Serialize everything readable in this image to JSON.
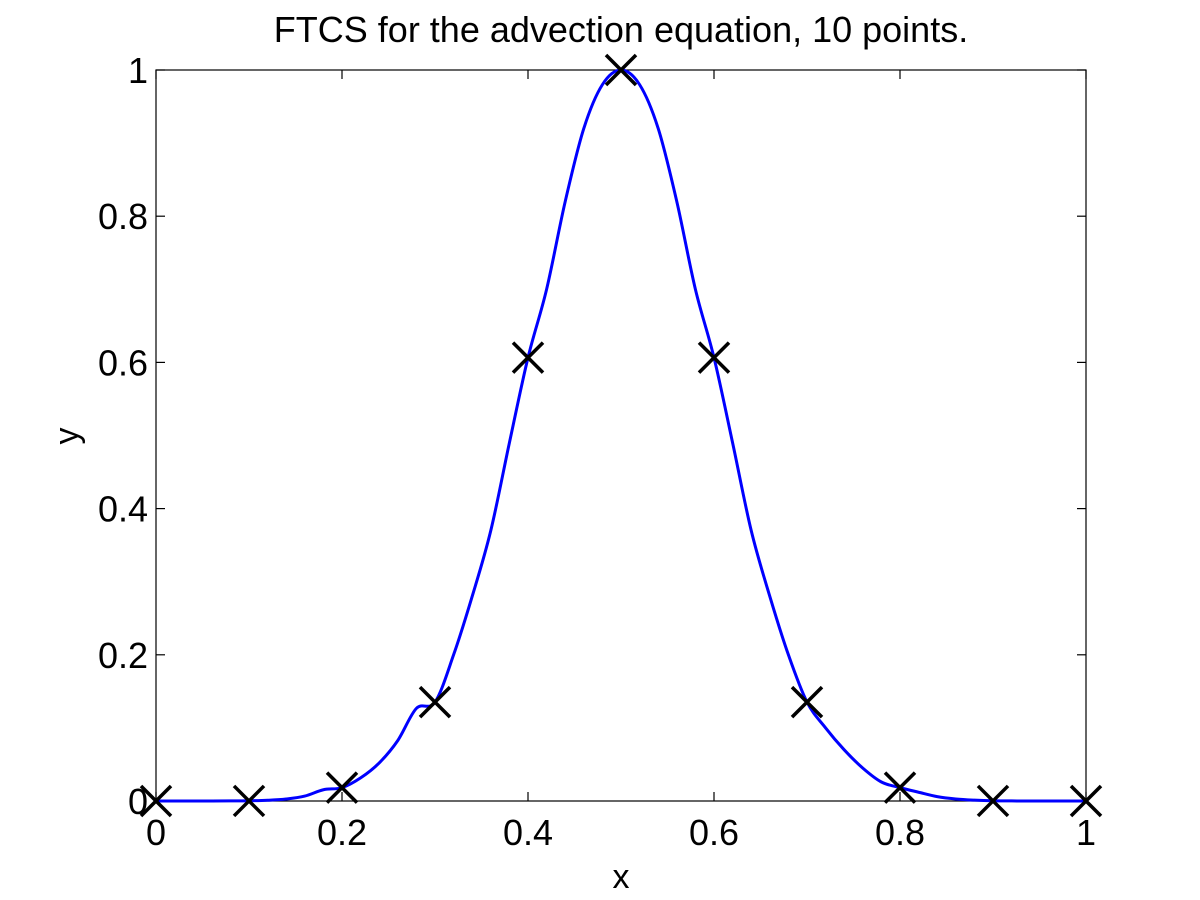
{
  "chart_data": {
    "type": "line",
    "title": "FTCS for the advection equation, 10 points.",
    "xlabel": "x",
    "ylabel": "y",
    "xlim": [
      0,
      1
    ],
    "ylim": [
      0,
      1
    ],
    "xticks": [
      0,
      0.2,
      0.4,
      0.6,
      0.8,
      1
    ],
    "xtick_labels": [
      "0",
      "0.2",
      "0.4",
      "0.6",
      "0.8",
      "1"
    ],
    "yticks": [
      0,
      0.2,
      0.4,
      0.6,
      0.8,
      1
    ],
    "ytick_labels": [
      "0",
      "0.2",
      "0.4",
      "0.6",
      "0.8",
      "1"
    ],
    "grid": false,
    "legend": "none",
    "series": [
      {
        "style": "line",
        "color": "#0000ff",
        "x": [
          0,
          0.02,
          0.04,
          0.06,
          0.08,
          0.1,
          0.12,
          0.14,
          0.16,
          0.18,
          0.2,
          0.22,
          0.24,
          0.26,
          0.28,
          0.3,
          0.32,
          0.34,
          0.36,
          0.38,
          0.4,
          0.42,
          0.44,
          0.46,
          0.48,
          0.5,
          0.52,
          0.54,
          0.56,
          0.58,
          0.6,
          0.62,
          0.64,
          0.66,
          0.68,
          0.7,
          0.72,
          0.74,
          0.76,
          0.78,
          0.8,
          0.82,
          0.84,
          0.86,
          0.88,
          0.9,
          0.92,
          0.94,
          0.96,
          0.98,
          1
        ],
        "y": [
          0.0,
          0.0,
          0.0,
          0.0,
          0.0001,
          0.0003,
          0.001,
          0.0027,
          0.0067,
          0.0154,
          0.0183,
          0.0316,
          0.0521,
          0.0828,
          0.1267,
          0.1353,
          0.2,
          0.28,
          0.37,
          0.49,
          0.6065,
          0.7,
          0.82,
          0.92,
          0.98,
          1.0,
          0.98,
          0.92,
          0.82,
          0.7,
          0.6065,
          0.49,
          0.37,
          0.28,
          0.2,
          0.1353,
          0.1,
          0.07,
          0.045,
          0.026,
          0.0183,
          0.012,
          0.006,
          0.0028,
          0.0012,
          0.0003,
          0.0001,
          0.0,
          0.0,
          0.0,
          0.0
        ]
      },
      {
        "style": "markers",
        "marker": "x",
        "color": "#000000",
        "x": [
          0,
          0.1,
          0.2,
          0.3,
          0.4,
          0.5,
          0.6,
          0.7,
          0.8,
          0.9,
          1
        ],
        "y": [
          0.0,
          0.0001,
          0.0183,
          0.1353,
          0.6065,
          1.0,
          0.6065,
          0.1353,
          0.0183,
          0.0001,
          0.0
        ]
      }
    ]
  }
}
